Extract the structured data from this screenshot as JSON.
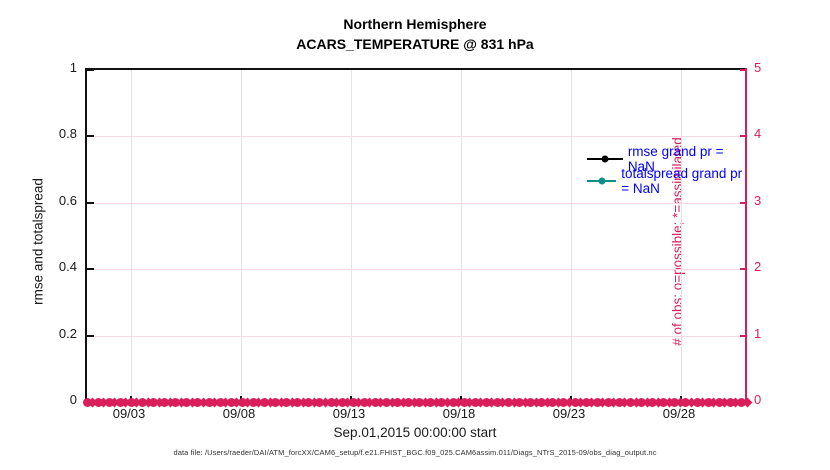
{
  "title": {
    "line1": "Northern Hemisphere",
    "line2": "ACARS_TEMPERATURE @ 831 hPa"
  },
  "axes": {
    "left": {
      "label": "rmse and totalspread",
      "tick_labels": [
        "0",
        "0.2",
        "0.4",
        "0.6",
        "0.8",
        "1"
      ],
      "color": "#1a1a1a"
    },
    "right": {
      "label": "# of obs: o=possible; *=assimilated",
      "tick_labels": [
        "0",
        "1",
        "2",
        "3",
        "4",
        "5"
      ],
      "color": "#d81e5b"
    },
    "x": {
      "label": "Sep.01,2015 00:00:00 start",
      "tick_labels": [
        "09/03",
        "09/08",
        "09/13",
        "09/18",
        "09/23",
        "09/28"
      ],
      "tick_days": [
        3,
        8,
        13,
        18,
        23,
        28
      ],
      "range_days": [
        1,
        31
      ]
    }
  },
  "legend": {
    "text_color": "#0000ff",
    "items": [
      {
        "label": "rmse grand pr = NaN",
        "line_color": "#000000"
      },
      {
        "label": "totalspread grand pr = NaN",
        "line_color": "#0e8f88"
      }
    ]
  },
  "footer": "data file: /Users/raeder/DAI/ATM_forcXX/CAM6_setup/f.e21.FHIST_BGC.f09_025.CAM6assim.011/Diags_NTrS_2015-09/obs_diag_output.nc",
  "colors": {
    "pink_accent": "#d81e5b",
    "pink_grid": "#f8d8e4",
    "gray_grid": "#e3e3e3",
    "teal_series": "#0e8f88",
    "legend_text_blue": "#0000ff",
    "axis_black": "#111111"
  },
  "chart_data": {
    "type": "line",
    "title": "Northern Hemisphere",
    "subtitle": "ACARS_TEMPERATURE @ 831 hPa",
    "xlabel": "Sep.01,2015 00:00:00 start",
    "x_tick_labels": [
      "09/03",
      "09/08",
      "09/13",
      "09/18",
      "09/23",
      "09/28"
    ],
    "x_tick_days": [
      3,
      8,
      13,
      18,
      23,
      28
    ],
    "x_range_days": [
      1,
      31
    ],
    "left_axis": {
      "ylabel": "rmse and totalspread",
      "ylim": [
        0,
        1
      ],
      "yticks": [
        0,
        0.2,
        0.4,
        0.6,
        0.8,
        1
      ]
    },
    "right_axis": {
      "ylabel": "# of obs: o=possible; *=assimilated",
      "ylim": [
        0,
        5
      ],
      "yticks": [
        0,
        1,
        2,
        3,
        4,
        5
      ]
    },
    "grid": true,
    "legend_position": "inside-top-right",
    "series": [
      {
        "name": "rmse grand pr = NaN",
        "axis": "left",
        "color": "#000000",
        "marker": "point",
        "n_points": 0,
        "values": [],
        "note": "all values NaN - no line drawn"
      },
      {
        "name": "totalspread grand pr = NaN",
        "axis": "left",
        "color": "#0e8f88",
        "marker": "point",
        "n_points": 0,
        "values": [],
        "note": "all values NaN - no line drawn"
      },
      {
        "name": "# of obs possible (o)",
        "axis": "right",
        "color": "#d81e5b",
        "marker": "o",
        "n_points": 120,
        "constant_value": 0,
        "note": "dense row of markers at y=0 spanning full x range"
      },
      {
        "name": "# of obs assimilated (*)",
        "axis": "right",
        "color": "#d81e5b",
        "marker": "*",
        "n_points": 120,
        "constant_value": 0,
        "note": "overlaps possible markers at y=0"
      }
    ]
  },
  "band": {
    "count": 120
  }
}
